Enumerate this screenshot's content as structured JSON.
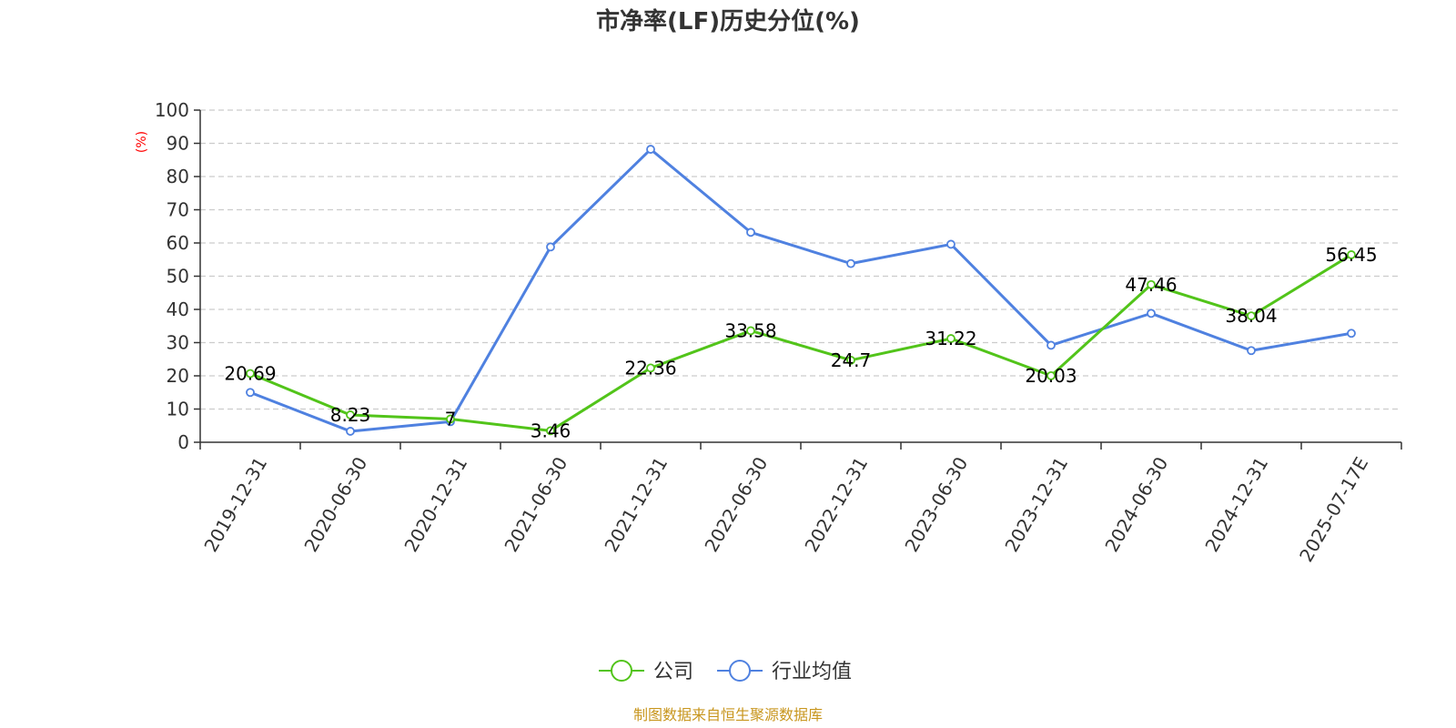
{
  "chart_data": {
    "type": "line",
    "title": "市净率(LF)历史分位(%)",
    "ylabel": "(%)",
    "ylim": [
      0,
      100
    ],
    "yticks": [
      0,
      10,
      20,
      30,
      40,
      50,
      60,
      70,
      80,
      90,
      100
    ],
    "categories": [
      "2019-12-31",
      "2020-06-30",
      "2020-12-31",
      "2021-06-30",
      "2021-12-31",
      "2022-06-30",
      "2022-12-31",
      "2023-06-30",
      "2023-12-31",
      "2024-06-30",
      "2024-12-31",
      "2025-07-17E"
    ],
    "series": [
      {
        "name": "公司",
        "color": "#52c41a",
        "values": [
          20.69,
          8.23,
          7,
          3.46,
          22.36,
          33.58,
          24.7,
          31.22,
          20.03,
          47.46,
          38.04,
          56.45
        ],
        "data_labels": [
          "20.69",
          "8.23",
          "7",
          "3.46",
          "22.36",
          "33.58",
          "24.7",
          "31.22",
          "20.03",
          "47.46",
          "38.04",
          "56.45"
        ]
      },
      {
        "name": "行业均值",
        "color": "#4f81e0",
        "values": [
          15,
          3.3,
          6.2,
          58.8,
          88.2,
          63.2,
          53.8,
          59.6,
          29.2,
          38.8,
          27.6,
          32.8
        ]
      }
    ],
    "grid": true,
    "legend_position": "bottom-center",
    "ylabel_color": "#ff0000",
    "source": "制图数据来自恒生聚源数据库",
    "source_color": "#c8961e"
  }
}
